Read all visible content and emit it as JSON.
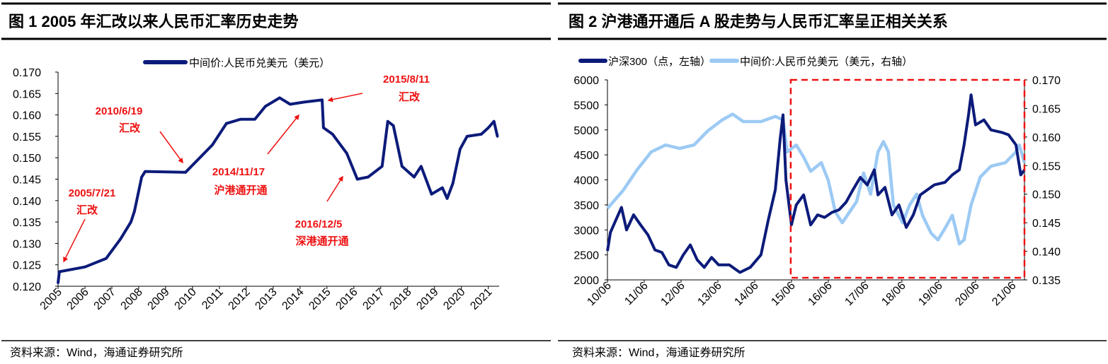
{
  "colors": {
    "navy": "#0c1b7a",
    "light_blue": "#9ccaf4",
    "red": "#ee1111"
  },
  "source_label": "资料来源：Wind，海通证券研究所",
  "chart_data": [
    {
      "type": "line",
      "title": "图 1 2005 年汇改以来人民币汇率历史走势",
      "legend": [
        "中间价:人民币兑美元（美元）"
      ],
      "legend_placement": "top-center",
      "xlabel": "",
      "ylabel": "",
      "x_ticks": [
        "2005",
        "2006",
        "2007",
        "2008",
        "2009",
        "2010",
        "2011",
        "2012",
        "2013",
        "2014",
        "2015",
        "2016",
        "2017",
        "2018",
        "2019",
        "2020",
        "2021"
      ],
      "xlim": [
        2005,
        2021.35
      ],
      "y_ticks": [
        "0.170",
        "0.165",
        "0.160",
        "0.155",
        "0.150",
        "0.145",
        "0.140",
        "0.135",
        "0.130",
        "0.125",
        "0.120"
      ],
      "ylim": [
        0.12,
        0.17
      ],
      "series": [
        {
          "name": "中间价:人民币兑美元（美元）",
          "color": "#0c1b7a",
          "points": [
            [
              2005.0,
              0.1208
            ],
            [
              2005.05,
              0.1234
            ],
            [
              2006.0,
              0.1245
            ],
            [
              2006.79,
              0.1265
            ],
            [
              2007.32,
              0.131
            ],
            [
              2007.71,
              0.135
            ],
            [
              2007.84,
              0.1375
            ],
            [
              2008.11,
              0.1455
            ],
            [
              2008.24,
              0.1468
            ],
            [
              2009.74,
              0.1466
            ],
            [
              2010.74,
              0.153
            ],
            [
              2011.26,
              0.158
            ],
            [
              2011.79,
              0.159
            ],
            [
              2012.32,
              0.159
            ],
            [
              2012.71,
              0.162
            ],
            [
              2013.24,
              0.164
            ],
            [
              2013.63,
              0.1625
            ],
            [
              2014.16,
              0.163
            ],
            [
              2014.82,
              0.1635
            ],
            [
              2014.87,
              0.157
            ],
            [
              2015.21,
              0.1555
            ],
            [
              2015.74,
              0.151
            ],
            [
              2016.13,
              0.145
            ],
            [
              2016.53,
              0.1455
            ],
            [
              2017.05,
              0.148
            ],
            [
              2017.26,
              0.1585
            ],
            [
              2017.47,
              0.1575
            ],
            [
              2017.79,
              0.148
            ],
            [
              2018.24,
              0.1455
            ],
            [
              2018.5,
              0.148
            ],
            [
              2018.89,
              0.1415
            ],
            [
              2019.29,
              0.143
            ],
            [
              2019.47,
              0.1405
            ],
            [
              2019.68,
              0.144
            ],
            [
              2019.95,
              0.152
            ],
            [
              2020.21,
              0.155
            ],
            [
              2020.74,
              0.1555
            ],
            [
              2021.0,
              0.157
            ],
            [
              2021.21,
              0.1585
            ],
            [
              2021.34,
              0.155
            ]
          ]
        }
      ],
      "annotations": [
        {
          "date": "2005/7/21",
          "text": "汇改"
        },
        {
          "date": "2010/6/19",
          "text": "汇改"
        },
        {
          "date": "2014/11/17",
          "text": "沪港通开通"
        },
        {
          "date": "2015/8/11",
          "text": "汇改"
        },
        {
          "date": "2016/12/5",
          "text": "深港通开通"
        }
      ]
    },
    {
      "type": "line",
      "title": "图 2 沪港通开通后 A 股走势与人民币汇率呈正相关关系",
      "legend": [
        "沪深300（点，左轴）",
        "中间价:人民币兑美元（美元，右轴）"
      ],
      "legend_placement": "top",
      "x_ticks": [
        "10/06",
        "11/06",
        "12/06",
        "13/06",
        "14/06",
        "15/06",
        "16/06",
        "17/06",
        "18/06",
        "19/06",
        "20/06",
        "21/06"
      ],
      "xlim": [
        2010.5,
        2021.83
      ],
      "y_left_ticks": [
        "6000",
        "5500",
        "5000",
        "4500",
        "4000",
        "3500",
        "3000",
        "2500",
        "2000"
      ],
      "ylim_left": [
        2000,
        6000
      ],
      "y_right_ticks": [
        "0.170",
        "0.165",
        "0.160",
        "0.155",
        "0.150",
        "0.145",
        "0.140",
        "0.135"
      ],
      "ylim_right": [
        0.135,
        0.17
      ],
      "highlight_range": {
        "x_start": 2015.48,
        "x_end": 2021.83,
        "style": "red-dashed-box"
      },
      "series": [
        {
          "name": "沪深300（点，左轴）",
          "axis": "left",
          "color": "#0c1b7a",
          "points": [
            [
              2010.5,
              2580
            ],
            [
              2010.58,
              2950
            ],
            [
              2010.73,
              3200
            ],
            [
              2010.88,
              3450
            ],
            [
              2011.02,
              3000
            ],
            [
              2011.21,
              3300
            ],
            [
              2011.4,
              3100
            ],
            [
              2011.6,
              2900
            ],
            [
              2011.79,
              2600
            ],
            [
              2011.98,
              2550
            ],
            [
              2012.17,
              2300
            ],
            [
              2012.37,
              2250
            ],
            [
              2012.56,
              2500
            ],
            [
              2012.75,
              2700
            ],
            [
              2012.94,
              2400
            ],
            [
              2013.13,
              2250
            ],
            [
              2013.33,
              2450
            ],
            [
              2013.52,
              2300
            ],
            [
              2013.81,
              2300
            ],
            [
              2014.1,
              2150
            ],
            [
              2014.38,
              2250
            ],
            [
              2014.67,
              2500
            ],
            [
              2014.87,
              3200
            ],
            [
              2015.06,
              3800
            ],
            [
              2015.19,
              4800
            ],
            [
              2015.27,
              5300
            ],
            [
              2015.35,
              4000
            ],
            [
              2015.4,
              3700
            ],
            [
              2015.5,
              3100
            ],
            [
              2015.63,
              3500
            ],
            [
              2015.83,
              3700
            ],
            [
              2016.02,
              3100
            ],
            [
              2016.21,
              3300
            ],
            [
              2016.4,
              3250
            ],
            [
              2016.6,
              3350
            ],
            [
              2016.79,
              3400
            ],
            [
              2016.98,
              3550
            ],
            [
              2017.17,
              3800
            ],
            [
              2017.37,
              4050
            ],
            [
              2017.56,
              3900
            ],
            [
              2017.75,
              4200
            ],
            [
              2017.85,
              3700
            ],
            [
              2018.04,
              3850
            ],
            [
              2018.23,
              3300
            ],
            [
              2018.42,
              3500
            ],
            [
              2018.62,
              3050
            ],
            [
              2018.81,
              3300
            ],
            [
              2019.0,
              3700
            ],
            [
              2019.19,
              3800
            ],
            [
              2019.38,
              3900
            ],
            [
              2019.67,
              3950
            ],
            [
              2019.87,
              4100
            ],
            [
              2020.06,
              4200
            ],
            [
              2020.19,
              4700
            ],
            [
              2020.31,
              5300
            ],
            [
              2020.38,
              5700
            ],
            [
              2020.5,
              5100
            ],
            [
              2020.73,
              5200
            ],
            [
              2020.92,
              5000
            ],
            [
              2021.21,
              4950
            ],
            [
              2021.4,
              4900
            ],
            [
              2021.6,
              4700
            ],
            [
              2021.73,
              4100
            ],
            [
              2021.83,
              4200
            ]
          ]
        },
        {
          "name": "中间价:人民币兑美元（美元，右轴）",
          "axis": "right",
          "color": "#9ccaf4",
          "points": [
            [
              2010.5,
              0.1475
            ],
            [
              2010.92,
              0.1506
            ],
            [
              2011.31,
              0.1543
            ],
            [
              2011.69,
              0.1574
            ],
            [
              2012.08,
              0.1586
            ],
            [
              2012.46,
              0.158
            ],
            [
              2012.85,
              0.1586
            ],
            [
              2013.23,
              0.1611
            ],
            [
              2013.62,
              0.163
            ],
            [
              2013.9,
              0.164
            ],
            [
              2014.19,
              0.1627
            ],
            [
              2014.67,
              0.1627
            ],
            [
              2015.06,
              0.1636
            ],
            [
              2015.27,
              0.163
            ],
            [
              2015.38,
              0.1574
            ],
            [
              2015.63,
              0.1586
            ],
            [
              2015.83,
              0.1565
            ],
            [
              2016.02,
              0.154
            ],
            [
              2016.31,
              0.1555
            ],
            [
              2016.5,
              0.1524
            ],
            [
              2016.69,
              0.1469
            ],
            [
              2016.88,
              0.145
            ],
            [
              2017.08,
              0.1469
            ],
            [
              2017.27,
              0.1487
            ],
            [
              2017.46,
              0.1537
            ],
            [
              2017.65,
              0.15
            ],
            [
              2017.85,
              0.1574
            ],
            [
              2018.0,
              0.1592
            ],
            [
              2018.13,
              0.1574
            ],
            [
              2018.27,
              0.1481
            ],
            [
              2018.52,
              0.145
            ],
            [
              2018.71,
              0.1481
            ],
            [
              2018.9,
              0.15
            ],
            [
              2019.06,
              0.1463
            ],
            [
              2019.29,
              0.1432
            ],
            [
              2019.48,
              0.142
            ],
            [
              2019.67,
              0.144
            ],
            [
              2019.87,
              0.1463
            ],
            [
              2020.06,
              0.1413
            ],
            [
              2020.19,
              0.142
            ],
            [
              2020.38,
              0.1481
            ],
            [
              2020.63,
              0.153
            ],
            [
              2020.92,
              0.1549
            ],
            [
              2021.31,
              0.1555
            ],
            [
              2021.6,
              0.1574
            ],
            [
              2021.69,
              0.1586
            ],
            [
              2021.83,
              0.1555
            ]
          ]
        }
      ]
    }
  ]
}
